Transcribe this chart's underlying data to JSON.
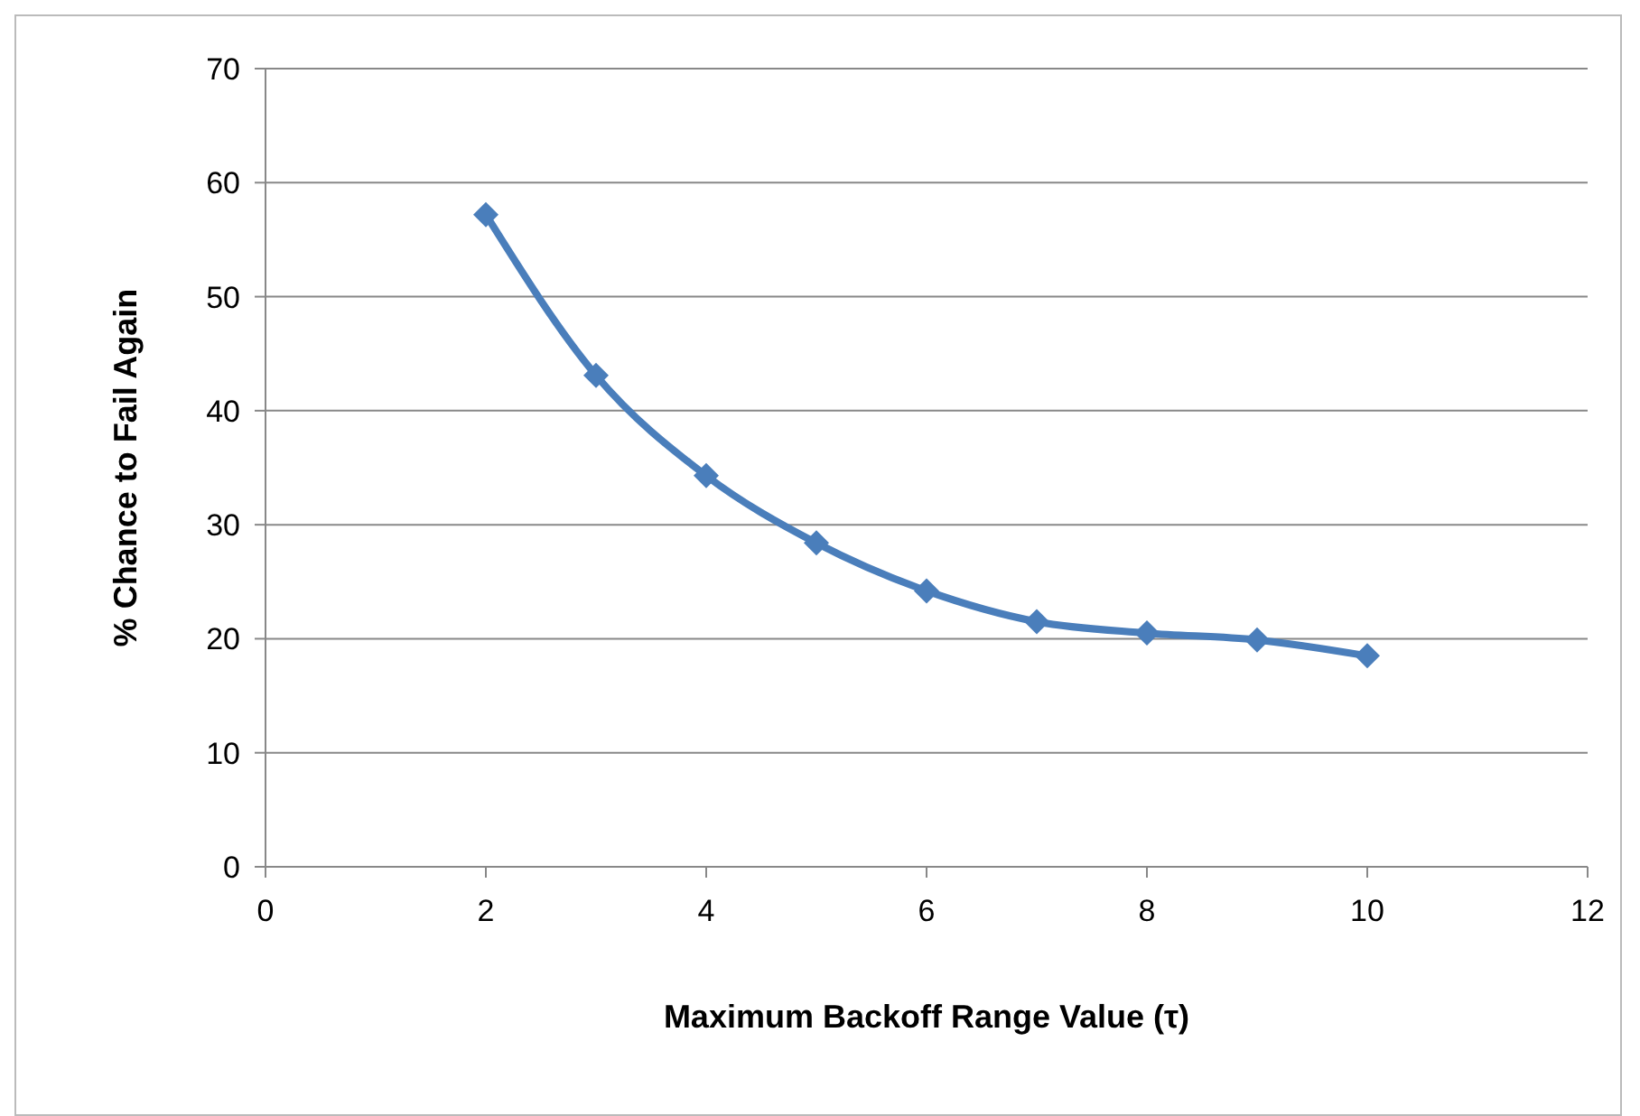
{
  "chart_data": {
    "type": "line",
    "xlabel": "Maximum Backoff Range Value (τ)",
    "ylabel": "% Chance to Fail Again",
    "x": [
      2,
      3,
      4,
      5,
      6,
      7,
      8,
      9,
      10
    ],
    "series": [
      {
        "color": "#4a7ebb",
        "values": [
          57.2,
          43.1,
          34.3,
          28.4,
          24.2,
          21.5,
          20.5,
          19.9,
          18.5
        ]
      }
    ],
    "xlim": [
      0,
      12
    ],
    "xticks": [
      0,
      2,
      4,
      6,
      8,
      10,
      12
    ],
    "ylim": [
      0,
      70
    ],
    "yticks": [
      0,
      10,
      20,
      30,
      40,
      50,
      60,
      70
    ],
    "grid": "y",
    "marker": "diamond",
    "line_style": "solid"
  }
}
